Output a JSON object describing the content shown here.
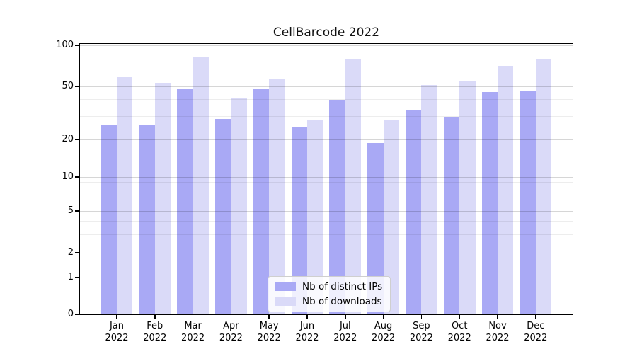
{
  "chart_data": {
    "type": "bar",
    "title": "CellBarcode 2022",
    "categories": [
      "Jan",
      "Feb",
      "Mar",
      "Apr",
      "May",
      "Jun",
      "Jul",
      "Aug",
      "Sep",
      "Oct",
      "Nov",
      "Dec"
    ],
    "category_year": "2022",
    "series": [
      {
        "name": "Nb of distinct IPs",
        "color": "#a9a9f5",
        "values": [
          26,
          26,
          49,
          29,
          48,
          25,
          40,
          19,
          34,
          30,
          46,
          47
        ]
      },
      {
        "name": "Nb of downloads",
        "color": "#dadaf8",
        "values": [
          59,
          54,
          84,
          41,
          58,
          28,
          80,
          28,
          52,
          56,
          72,
          80
        ]
      }
    ],
    "yscale": "pseudo-log",
    "ylim": [
      0,
      100
    ],
    "yticks": [
      0,
      1,
      2,
      5,
      10,
      20,
      50,
      100
    ],
    "minor_yticks": [
      3,
      4,
      6,
      7,
      8,
      9,
      30,
      40,
      60,
      70,
      80,
      90
    ],
    "grid": true,
    "legend_position": "lower center",
    "colors": {
      "axis": "#000000",
      "grid_major": "#d6d6d6",
      "grid_minor": "#ededed",
      "background": "#ffffff"
    }
  }
}
